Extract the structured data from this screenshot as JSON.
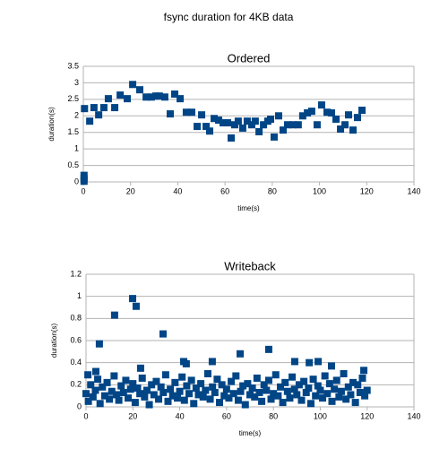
{
  "title": "fsync duration for 4KB data",
  "chart_data": [
    {
      "type": "scatter",
      "title": "Ordered",
      "x_label": "time(s)",
      "y_label": "duration(s)",
      "series": [
        {
          "name": "Ordered",
          "color": "#004586",
          "x": [
            0.3,
            0.3,
            0.3,
            0.5,
            2.7,
            4.5,
            6.5,
            8.7,
            10.6,
            13.3,
            15.6,
            18.6,
            20.9,
            23.9,
            26.6,
            28.8,
            30.7,
            32.2,
            34.5,
            36.8,
            38.7,
            41,
            43.6,
            45.9,
            48.2,
            50.1,
            52,
            53.5,
            55.4,
            57.3,
            59.2,
            61.1,
            62.6,
            64.1,
            65.6,
            67.5,
            69.4,
            71.3,
            72.8,
            74.4,
            76.3,
            78.1,
            79.3,
            80.8,
            82.7,
            84.6,
            86.5,
            88.8,
            91,
            92.9,
            94.9,
            96.7,
            99,
            100.9,
            103.2,
            105.1,
            107,
            108.9,
            110.8,
            112.3,
            114.2,
            116.1,
            118
          ],
          "values": [
            0.02,
            0.1,
            0.2,
            2.22,
            1.84,
            2.25,
            2.03,
            2.25,
            2.52,
            2.25,
            2.63,
            2.52,
            2.95,
            2.79,
            2.57,
            2.57,
            2.6,
            2.6,
            2.57,
            2.06,
            2.66,
            2.52,
            2.11,
            2.11,
            1.68,
            2.03,
            1.68,
            1.54,
            1.92,
            1.87,
            1.79,
            1.79,
            1.33,
            1.73,
            1.84,
            1.63,
            1.84,
            1.73,
            1.84,
            1.52,
            1.73,
            1.84,
            1.9,
            1.36,
            2.0,
            1.57,
            1.73,
            1.73,
            1.73,
            2.0,
            2.09,
            2.14,
            1.73,
            2.33,
            2.11,
            2.09,
            1.9,
            1.6,
            1.73,
            2.03,
            1.57,
            1.95,
            2.17
          ]
        }
      ],
      "xlim": [
        0,
        140
      ],
      "xticks": [
        0,
        20,
        40,
        60,
        80,
        100,
        120,
        140
      ],
      "ylim": [
        0,
        3.5
      ],
      "yticks": [
        0,
        0.5,
        1,
        1.5,
        2,
        2.5,
        3,
        3.5
      ],
      "grid": true
    },
    {
      "type": "scatter",
      "title": "Writeback",
      "x_label": "time(s)",
      "y_label": "duration(s)",
      "series": [
        {
          "name": "Writeback",
          "color": "#004586",
          "x": [
            0,
            1,
            2,
            3,
            4,
            5,
            6,
            7,
            8,
            9,
            10,
            11,
            12,
            13,
            14,
            15,
            16,
            17,
            18,
            19,
            20,
            21,
            22,
            23,
            24,
            25,
            26,
            27,
            28,
            29,
            30,
            31,
            32,
            33,
            34,
            35,
            36,
            37,
            38,
            39,
            40,
            41,
            42,
            43,
            44,
            45,
            46,
            47,
            48,
            49,
            50,
            51,
            52,
            53,
            54,
            55,
            56,
            57,
            58,
            59,
            60,
            61,
            62,
            63,
            64,
            65,
            66,
            67,
            68,
            69,
            70,
            71,
            72,
            73,
            74,
            75,
            76,
            77,
            78,
            79,
            80,
            81,
            82,
            83,
            84,
            85,
            86,
            87,
            88,
            89,
            90,
            91,
            92,
            93,
            94,
            95,
            96,
            97,
            98,
            99,
            100,
            101,
            102,
            103,
            104,
            105,
            106,
            107,
            108,
            109,
            110,
            111,
            112,
            113,
            114,
            115,
            116,
            117,
            118,
            119,
            120,
            0.8,
            4.2,
            5.7,
            12.2,
            19.9,
            21.4,
            23.3,
            32.9,
            41.7,
            42.8,
            53.9,
            65.8,
            78,
            89.1,
            95.3,
            99.1,
            104.8,
            118.6
          ],
          "values": [
            0.12,
            0.05,
            0.2,
            0.09,
            0.15,
            0.25,
            0.03,
            0.18,
            0.1,
            0.22,
            0.07,
            0.14,
            0.28,
            0.11,
            0.06,
            0.19,
            0.13,
            0.24,
            0.08,
            0.16,
            0.21,
            0.04,
            0.17,
            0.12,
            0.26,
            0.09,
            0.15,
            0.02,
            0.2,
            0.11,
            0.23,
            0.07,
            0.18,
            0.13,
            0.29,
            0.05,
            0.16,
            0.1,
            0.22,
            0.08,
            0.14,
            0.27,
            0.06,
            0.19,
            0.12,
            0.24,
            0.03,
            0.17,
            0.11,
            0.21,
            0.09,
            0.15,
            0.3,
            0.07,
            0.18,
            0.13,
            0.25,
            0.04,
            0.2,
            0.1,
            0.16,
            0.08,
            0.23,
            0.12,
            0.28,
            0.06,
            0.14,
            0.19,
            0.02,
            0.21,
            0.11,
            0.17,
            0.09,
            0.26,
            0.13,
            0.05,
            0.2,
            0.15,
            0.24,
            0.07,
            0.12,
            0.29,
            0.1,
            0.18,
            0.04,
            0.22,
            0.14,
            0.08,
            0.27,
            0.16,
            0.11,
            0.2,
            0.06,
            0.23,
            0.13,
            0.17,
            0.03,
            0.25,
            0.1,
            0.19,
            0.15,
            0.08,
            0.28,
            0.12,
            0.21,
            0.05,
            0.16,
            0.24,
            0.09,
            0.14,
            0.3,
            0.07,
            0.18,
            0.11,
            0.22,
            0.04,
            0.2,
            0.13,
            0.26,
            0.1,
            0.15,
            0.29,
            0.32,
            0.57,
            0.83,
            0.98,
            0.91,
            0.35,
            0.66,
            0.41,
            0.39,
            0.41,
            0.48,
            0.52,
            0.41,
            0.4,
            0.41,
            0.37,
            0.33
          ]
        }
      ],
      "xlim": [
        0,
        140
      ],
      "xticks": [
        0,
        20,
        40,
        60,
        80,
        100,
        120,
        140
      ],
      "ylim": [
        0,
        1.2
      ],
      "yticks": [
        0,
        0.2,
        0.4,
        0.6,
        0.8,
        1,
        1.2
      ],
      "grid": true
    }
  ]
}
